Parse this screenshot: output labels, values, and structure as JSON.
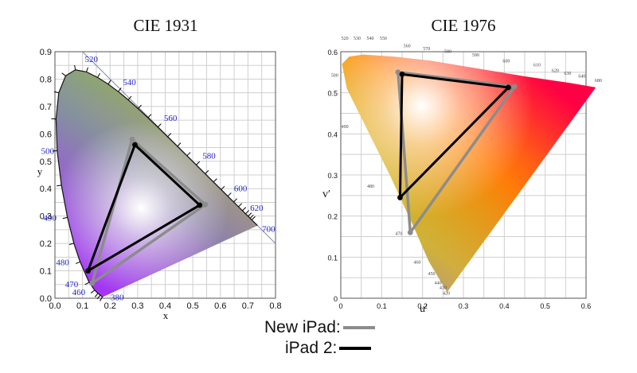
{
  "chart_data": [
    {
      "type": "scatter",
      "title": "CIE 1931",
      "xlabel": "x",
      "ylabel": "y",
      "xlim": [
        0.0,
        0.8
      ],
      "ylim": [
        0.0,
        0.9
      ],
      "x_ticks": [
        "0.0",
        "0.1",
        "0.2",
        "0.3",
        "0.4",
        "0.5",
        "0.6",
        "0.7",
        "0.8"
      ],
      "y_ticks": [
        "0.0",
        "0.1",
        "0.2",
        "0.3",
        "0.4",
        "0.5",
        "0.6",
        "0.7",
        "0.8",
        "0.9"
      ],
      "locus": [
        [
          0.1741,
          0.005
        ],
        [
          0.172,
          0.0048
        ],
        [
          0.1644,
          0.0109
        ],
        [
          0.1566,
          0.0177
        ],
        [
          0.144,
          0.0297
        ],
        [
          0.1241,
          0.0578
        ],
        [
          0.0913,
          0.1327
        ],
        [
          0.0687,
          0.2007
        ],
        [
          0.0454,
          0.295
        ],
        [
          0.0235,
          0.4127
        ],
        [
          0.0082,
          0.5384
        ],
        [
          0.0039,
          0.6548
        ],
        [
          0.0139,
          0.7502
        ],
        [
          0.0389,
          0.812
        ],
        [
          0.0743,
          0.8338
        ],
        [
          0.1142,
          0.8262
        ],
        [
          0.1547,
          0.8059
        ],
        [
          0.1929,
          0.7816
        ],
        [
          0.2296,
          0.7543
        ],
        [
          0.2658,
          0.7243
        ],
        [
          0.3016,
          0.6923
        ],
        [
          0.3373,
          0.6589
        ],
        [
          0.3731,
          0.6245
        ],
        [
          0.4087,
          0.5896
        ],
        [
          0.4441,
          0.5547
        ],
        [
          0.4788,
          0.5202
        ],
        [
          0.5125,
          0.4866
        ],
        [
          0.5448,
          0.4544
        ],
        [
          0.5752,
          0.4242
        ],
        [
          0.6029,
          0.3965
        ],
        [
          0.627,
          0.3725
        ],
        [
          0.6482,
          0.3514
        ],
        [
          0.6658,
          0.334
        ],
        [
          0.6801,
          0.3197
        ],
        [
          0.6915,
          0.3083
        ],
        [
          0.7006,
          0.2993
        ],
        [
          0.7079,
          0.292
        ],
        [
          0.714,
          0.2859
        ],
        [
          0.7347,
          0.2653
        ]
      ],
      "wavelength_labels": [
        {
          "text": "380",
          "x": 0.1741,
          "y": 0.005
        },
        {
          "text": "460",
          "x": 0.144,
          "y": 0.0297
        },
        {
          "text": "470",
          "x": 0.1241,
          "y": 0.0578
        },
        {
          "text": "480",
          "x": 0.0913,
          "y": 0.1327
        },
        {
          "text": "490",
          "x": 0.0454,
          "y": 0.295
        },
        {
          "text": "500",
          "x": 0.0082,
          "y": 0.5384
        },
        {
          "text": "520",
          "x": 0.0743,
          "y": 0.8338
        },
        {
          "text": "540",
          "x": 0.2296,
          "y": 0.7543
        },
        {
          "text": "560",
          "x": 0.3731,
          "y": 0.6245
        },
        {
          "text": "580",
          "x": 0.5125,
          "y": 0.4866
        },
        {
          "text": "600",
          "x": 0.627,
          "y": 0.3725
        },
        {
          "text": "620",
          "x": 0.6915,
          "y": 0.3083
        },
        {
          "text": "700",
          "x": 0.7347,
          "y": 0.2653
        }
      ],
      "series": [
        {
          "name": "New iPad",
          "color": "#8c8c8c",
          "points": [
            [
              0.28,
              0.58
            ],
            [
              0.545,
              0.342
            ],
            [
              0.135,
              0.055
            ]
          ]
        },
        {
          "name": "iPad 2",
          "color": "#000000",
          "points": [
            [
              0.29,
              0.56
            ],
            [
              0.525,
              0.34
            ],
            [
              0.12,
              0.1
            ]
          ]
        }
      ]
    },
    {
      "type": "scatter",
      "title": "CIE 1976",
      "xlabel": "u′",
      "ylabel": "v′",
      "xlim": [
        0.0,
        0.6
      ],
      "ylim": [
        0.0,
        0.6
      ],
      "x_ticks": [
        "0",
        "0.1",
        "0.2",
        "0.3",
        "0.4",
        "0.5",
        "0.6"
      ],
      "y_ticks": [
        "0",
        "0.1",
        "0.2",
        "0.3",
        "0.4",
        "0.5",
        "0.6"
      ],
      "locus": [
        [
          0.26,
          0.015
        ],
        [
          0.245,
          0.04
        ],
        [
          0.215,
          0.09
        ],
        [
          0.18,
          0.17
        ],
        [
          0.12,
          0.3
        ],
        [
          0.06,
          0.42
        ],
        [
          0.015,
          0.51
        ],
        [
          0.003,
          0.57
        ],
        [
          0.02,
          0.588
        ],
        [
          0.055,
          0.593
        ],
        [
          0.13,
          0.588
        ],
        [
          0.22,
          0.578
        ],
        [
          0.33,
          0.56
        ],
        [
          0.45,
          0.54
        ],
        [
          0.56,
          0.524
        ],
        [
          0.624,
          0.513
        ]
      ],
      "wavelength_labels": [
        {
          "text": "420",
          "x": 0.258,
          "y": 0.005
        },
        {
          "text": "430",
          "x": 0.25,
          "y": 0.018
        },
        {
          "text": "440",
          "x": 0.238,
          "y": 0.03
        },
        {
          "text": "450",
          "x": 0.222,
          "y": 0.052
        },
        {
          "text": "460",
          "x": 0.187,
          "y": 0.08
        },
        {
          "text": "470",
          "x": 0.142,
          "y": 0.15
        },
        {
          "text": "480",
          "x": 0.073,
          "y": 0.265
        },
        {
          "text": "490",
          "x": 0.01,
          "y": 0.41
        },
        {
          "text": "500",
          "x": -0.015,
          "y": 0.535
        },
        {
          "text": "520",
          "x": 0.01,
          "y": 0.625
        },
        {
          "text": "530",
          "x": 0.04,
          "y": 0.625
        },
        {
          "text": "540",
          "x": 0.072,
          "y": 0.625
        },
        {
          "text": "550",
          "x": 0.104,
          "y": 0.625
        },
        {
          "text": "560",
          "x": 0.162,
          "y": 0.607
        },
        {
          "text": "570",
          "x": 0.21,
          "y": 0.6
        },
        {
          "text": "580",
          "x": 0.262,
          "y": 0.593
        },
        {
          "text": "590",
          "x": 0.33,
          "y": 0.585
        },
        {
          "text": "600",
          "x": 0.405,
          "y": 0.57
        },
        {
          "text": "610",
          "x": 0.48,
          "y": 0.56
        },
        {
          "text": "620",
          "x": 0.525,
          "y": 0.547
        },
        {
          "text": "630",
          "x": 0.555,
          "y": 0.54
        },
        {
          "text": "640",
          "x": 0.59,
          "y": 0.533
        },
        {
          "text": "680",
          "x": 0.63,
          "y": 0.523
        }
      ],
      "series": [
        {
          "name": "New iPad",
          "color": "#8c8c8c",
          "points": [
            [
              0.14,
              0.55
            ],
            [
              0.425,
              0.515
            ],
            [
              0.17,
              0.16
            ]
          ]
        },
        {
          "name": "iPad 2",
          "color": "#000000",
          "points": [
            [
              0.15,
              0.545
            ],
            [
              0.41,
              0.513
            ],
            [
              0.145,
              0.245
            ]
          ]
        }
      ]
    }
  ],
  "legend": [
    {
      "label": "New iPad:",
      "color": "#8c8c8c"
    },
    {
      "label": "iPad 2:",
      "color": "#000000"
    }
  ]
}
